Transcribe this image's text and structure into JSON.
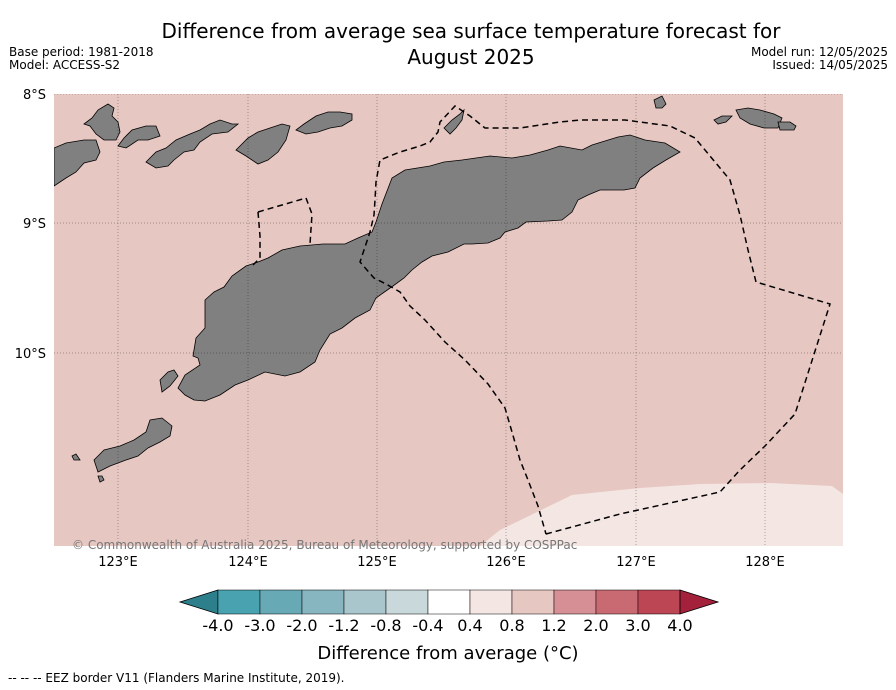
{
  "title": {
    "line1": "Difference from average sea surface temperature forecast for",
    "line2": "August 2025"
  },
  "meta_left": {
    "base_period": "Base period: 1981-2018",
    "model": "Model: ACCESS-S2"
  },
  "meta_right": {
    "model_run": "Model run: 12/05/2025",
    "issued": "Issued: 14/05/2025"
  },
  "map": {
    "lat_labels": [
      "8°S",
      "9°S",
      "10°S"
    ],
    "lon_labels": [
      "123°E",
      "124°E",
      "125°E",
      "126°E",
      "127°E",
      "128°E"
    ],
    "copyright": "© Commonwealth of Australia 2025, Bureau of Meteorology, supported by COSPPac",
    "colors": {
      "anomaly_0_8_to_1_2": "#e7c7c2",
      "anomaly_0_4_to_0_8": "#f4e6e3",
      "land": "#808080",
      "eez_border": "#000000"
    }
  },
  "colorbar": {
    "ticks": [
      "-4.0",
      "-3.0",
      "-2.0",
      "-1.2",
      "-0.8",
      "-0.4",
      "0.4",
      "0.8",
      "1.2",
      "2.0",
      "3.0",
      "4.0"
    ],
    "colors": [
      "#2d7f8c",
      "#49a2b0",
      "#67aab6",
      "#87b6c1",
      "#a8c6cb",
      "#c9d8da",
      "#ffffff",
      "#f4e6e3",
      "#e7c7c2",
      "#d68f95",
      "#c96a73",
      "#bd4655",
      "#a3213a"
    ],
    "label": "Difference from average (°C)"
  },
  "footer": "--  --  -- EEZ border V11 (Flanders Marine Institute, 2019)."
}
